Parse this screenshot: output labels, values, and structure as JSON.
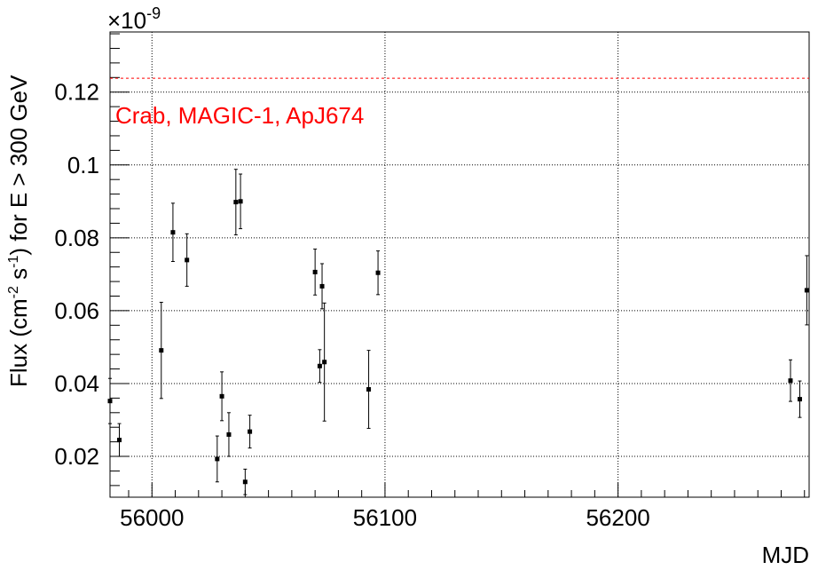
{
  "chart_data": {
    "type": "scatter",
    "title": "",
    "xlabel": "MJD",
    "ylabel_parts": [
      "Flux (cm",
      "-2",
      " s",
      "-1",
      ") for E > 300 GeV"
    ],
    "y_exponent": {
      "base": "×10",
      "power": "-9"
    },
    "xlim": [
      55982,
      56282
    ],
    "ylim": [
      0.0088,
      0.1365
    ],
    "x_ticks": [
      56000,
      56100,
      56200
    ],
    "x_tick_labels": [
      "56000",
      "56100",
      "56200"
    ],
    "y_ticks": [
      0.02,
      0.04,
      0.06,
      0.08,
      0.1,
      0.12
    ],
    "y_tick_labels": [
      "0.02",
      "0.04",
      "0.06",
      "0.08",
      "0.1",
      "0.12"
    ],
    "grid": true,
    "reference_line": {
      "y": 0.1238,
      "label": "Crab, MAGIC-1, ApJ674",
      "color": "#ff0000"
    },
    "marker_color": "#000000",
    "points": [
      {
        "x": 55982,
        "y": 0.0352,
        "err": 0.0062
      },
      {
        "x": 55986,
        "y": 0.0245,
        "err": 0.0045
      },
      {
        "x": 56004,
        "y": 0.0491,
        "err": 0.0132
      },
      {
        "x": 56009,
        "y": 0.0815,
        "err": 0.008
      },
      {
        "x": 56015,
        "y": 0.0739,
        "err": 0.0072
      },
      {
        "x": 56028,
        "y": 0.0193,
        "err": 0.0063
      },
      {
        "x": 56030,
        "y": 0.0365,
        "err": 0.0067
      },
      {
        "x": 56033,
        "y": 0.026,
        "err": 0.006
      },
      {
        "x": 56036,
        "y": 0.0898,
        "err": 0.009
      },
      {
        "x": 56038,
        "y": 0.09,
        "err": 0.0075
      },
      {
        "x": 56040,
        "y": 0.013,
        "err": 0.0035
      },
      {
        "x": 56042,
        "y": 0.0268,
        "err": 0.0045
      },
      {
        "x": 56070,
        "y": 0.0706,
        "err": 0.0063
      },
      {
        "x": 56072,
        "y": 0.0448,
        "err": 0.0045
      },
      {
        "x": 56073,
        "y": 0.0667,
        "err": 0.0062
      },
      {
        "x": 56074,
        "y": 0.0459,
        "err": 0.0162
      },
      {
        "x": 56093,
        "y": 0.0384,
        "err": 0.0107
      },
      {
        "x": 56097,
        "y": 0.0704,
        "err": 0.006
      },
      {
        "x": 56274,
        "y": 0.0408,
        "err": 0.0057
      },
      {
        "x": 56278,
        "y": 0.0357,
        "err": 0.005
      },
      {
        "x": 56281,
        "y": 0.0656,
        "err": 0.0095
      }
    ]
  }
}
